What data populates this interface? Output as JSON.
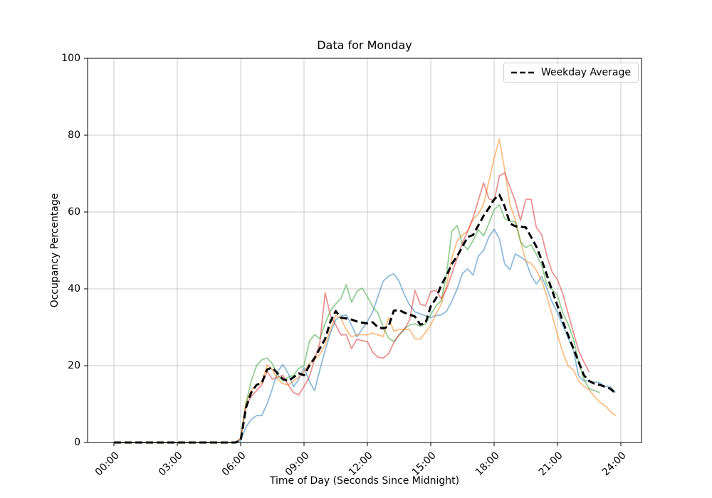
{
  "chart_data": {
    "type": "line",
    "title": "Data for Monday",
    "xlabel": "Time of Day (Seconds Since Midnight)",
    "ylabel": "Occupancy Percentage",
    "ylim": [
      0,
      100
    ],
    "y_ticks": [
      0,
      20,
      40,
      60,
      80,
      100
    ],
    "x_tick_hours": [
      0,
      3,
      6,
      9,
      12,
      15,
      18,
      21,
      24
    ],
    "x_tick_labels": [
      "00:00",
      "03:00",
      "06:00",
      "09:00",
      "12:00",
      "15:00",
      "18:00",
      "21:00",
      "24:00"
    ],
    "grid": true,
    "grid_color": "#c8c8c8",
    "legend": {
      "label": "Weekday Average",
      "position": "upper right"
    },
    "x_step_hours": 0.25,
    "x_start_hour": 0,
    "series": [
      {
        "name": "monday-trace-blue",
        "color": "#1f77b4",
        "alpha": 0.5,
        "width": 1.8,
        "dashed": false,
        "values": [
          0,
          0,
          0,
          0,
          0,
          0,
          0,
          0,
          0,
          0,
          0,
          0,
          0,
          0,
          0,
          0,
          0,
          0,
          0,
          0,
          0,
          0,
          0,
          0,
          0.5,
          4,
          6,
          7,
          7,
          10,
          14,
          18.5,
          20.3,
          18,
          14.5,
          16.5,
          19.5,
          16,
          13.5,
          19,
          24,
          28.5,
          31.9,
          33,
          33.2,
          30.5,
          27.5,
          29.5,
          31.5,
          34,
          38,
          42,
          43.3,
          43.9,
          42,
          38.5,
          35.8,
          34,
          33.5,
          33,
          32.5,
          33.1,
          33.2,
          34.2,
          36.8,
          40,
          44,
          45.2,
          43.6,
          48.5,
          50,
          53.5,
          55.5,
          53,
          46.5,
          45,
          49.1,
          48.3,
          47.3,
          43.5,
          41.3,
          43.2,
          40,
          36.5,
          33.8,
          30.5,
          27.3,
          24,
          17.3,
          16,
          16.1,
          15.7,
          15.6,
          14.6,
          14.5,
          13,
          null
        ]
      },
      {
        "name": "monday-trace-orange",
        "color": "#ff7f0e",
        "alpha": 0.5,
        "width": 1.8,
        "dashed": false,
        "values": [
          0,
          0,
          0,
          0,
          0,
          0,
          0,
          0,
          0,
          0,
          0,
          0,
          0,
          0,
          0,
          0,
          0,
          0,
          0,
          0,
          0,
          0,
          0,
          0,
          1,
          10.5,
          13.5,
          15,
          15.5,
          20.2,
          19,
          16.5,
          15.3,
          15,
          16,
          17,
          18.5,
          20.5,
          21.5,
          23,
          25.5,
          29.5,
          33,
          32.3,
          29.4,
          27.5,
          28,
          28.1,
          28,
          28.5,
          28,
          27.6,
          32.5,
          29,
          29.4,
          29.5,
          29.4,
          27,
          26.9,
          28.6,
          30.6,
          33.5,
          36,
          41,
          48,
          52.5,
          54,
          55,
          58,
          59.5,
          62,
          68,
          74,
          79,
          71,
          62,
          58,
          52.5,
          47.2,
          46.7,
          44.8,
          42,
          38,
          33.1,
          28,
          23.5,
          20,
          18.9,
          16,
          14.6,
          13.7,
          12,
          10.5,
          9.6,
          8.1,
          7,
          null
        ]
      },
      {
        "name": "monday-trace-green",
        "color": "#2ca02c",
        "alpha": 0.5,
        "width": 1.8,
        "dashed": false,
        "values": [
          0,
          0,
          0,
          0,
          0,
          0,
          0,
          0,
          0,
          0,
          0,
          0,
          0,
          0,
          0,
          0,
          0,
          0,
          0,
          0,
          0,
          0,
          0,
          0,
          1,
          10,
          16,
          20,
          21.5,
          22,
          20.5,
          17.5,
          16,
          17,
          17.5,
          19.3,
          20,
          26.3,
          28.1,
          27,
          31,
          34.3,
          36.1,
          37.5,
          41.1,
          36.5,
          39.3,
          40.2,
          38,
          35.3,
          33.7,
          30,
          27.2,
          26.3,
          28,
          29.6,
          30.6,
          30.9,
          30.2,
          30.9,
          33.3,
          35.6,
          36.9,
          44,
          55,
          56.5,
          51.7,
          50.2,
          52.5,
          55.4,
          53.8,
          57,
          60.6,
          61.9,
          58.3,
          57.6,
          57.4,
          52.2,
          50.7,
          51.5,
          49,
          46.1,
          41.1,
          39.8,
          38.3,
          33.7,
          30.9,
          27,
          21,
          16.5,
          14,
          13.5,
          13,
          null,
          null,
          null,
          null
        ]
      },
      {
        "name": "monday-trace-red",
        "color": "#d62728",
        "alpha": 0.5,
        "width": 1.8,
        "dashed": false,
        "values": [
          0,
          0,
          0,
          0,
          0,
          0,
          0,
          0,
          0,
          0,
          0,
          0,
          0,
          0,
          0,
          0,
          0,
          0,
          0,
          0,
          0,
          0,
          0,
          0,
          1,
          9.5,
          12,
          13.5,
          15,
          18.5,
          16.5,
          17,
          17.5,
          15,
          13,
          12.4,
          14.6,
          17,
          21.7,
          26,
          39,
          33,
          30.6,
          28,
          28.1,
          24.4,
          26.9,
          26.5,
          26.3,
          23.5,
          22.2,
          22,
          23.1,
          26,
          28,
          29.4,
          31.9,
          39.6,
          36,
          35.6,
          39.3,
          39.6,
          37.4,
          40,
          44,
          48,
          52,
          55,
          58.5,
          63,
          67.6,
          63.5,
          62.8,
          69.4,
          70.2,
          66.5,
          62.8,
          57.8,
          63.3,
          63.3,
          56,
          54.1,
          48.5,
          44.3,
          42.4,
          38.7,
          33.7,
          28.7,
          23.9,
          21,
          18.3,
          null,
          null,
          null,
          null,
          null,
          null
        ]
      },
      {
        "name": "weekday-average",
        "color": "#000000",
        "alpha": 1,
        "width": 3,
        "dashed": true,
        "values": [
          0,
          0,
          0,
          0,
          0,
          0,
          0,
          0,
          0,
          0,
          0,
          0,
          0,
          0,
          0,
          0,
          0,
          0,
          0,
          0,
          0,
          0,
          0,
          0,
          0.5,
          9,
          13,
          15,
          15.5,
          19,
          19.5,
          18,
          16.5,
          16,
          17,
          18,
          17.5,
          20,
          22,
          24.5,
          27,
          31.5,
          34.2,
          32.5,
          32.3,
          32,
          31.5,
          31.2,
          31,
          31.3,
          30,
          29.7,
          30.2,
          34.3,
          34.5,
          33.8,
          33.3,
          32.8,
          30.7,
          31,
          35.5,
          37.5,
          41,
          43.5,
          46.5,
          48.5,
          51,
          53.5,
          54,
          56.5,
          59,
          61,
          63.3,
          64.5,
          61.5,
          57,
          56.3,
          56.2,
          56,
          53.5,
          51,
          47.5,
          43.5,
          39.5,
          35.6,
          31.5,
          28,
          24.5,
          21,
          17.5,
          16,
          15.3,
          15,
          14.5,
          14,
          12.8,
          null
        ]
      }
    ]
  }
}
